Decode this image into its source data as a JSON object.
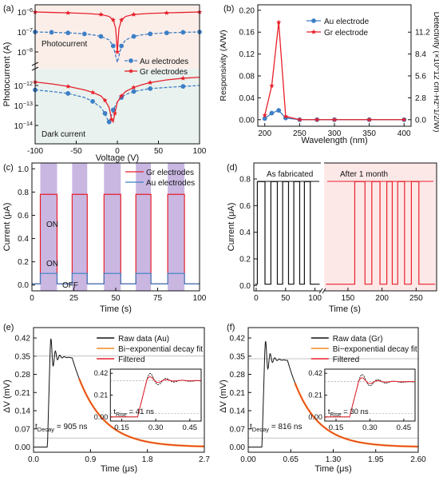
{
  "figure": {
    "colors": {
      "red": "#e8202a",
      "blue": "#3d7fc6",
      "black": "#111111",
      "orange": "#f08a24",
      "purple": "#b79fd8",
      "shade_top": "#fbeee9",
      "shade_bottom": "#e9f2ee",
      "pink": "#fde8e8"
    }
  },
  "chart_data": [
    {
      "panel": "(a)",
      "type": "line",
      "xlabel": "Voltage (V)",
      "ylabel": "Photocurrent (A)",
      "x_ticks": [
        "-100",
        "-50",
        "0",
        "50",
        "100"
      ],
      "y_ticks_top": [
        "10^-6",
        "10^-7",
        "10^-8"
      ],
      "y_ticks_bottom": [
        "10^-12",
        "10^-13",
        "10^-14"
      ],
      "xlim": [
        -100,
        100
      ],
      "annotations": [
        "Photocurrent",
        "Dark current"
      ],
      "legend": [
        "Au electrodes",
        "Gr electrodes"
      ],
      "series": [
        {
          "name": "Au electrodes",
          "group": "photo",
          "x": [
            -100,
            -90,
            -80,
            -70,
            -60,
            -50,
            -40,
            -30,
            -20,
            -10,
            -5,
            0,
            5,
            10,
            20,
            30,
            40,
            50,
            60,
            70,
            80,
            90,
            100
          ],
          "y": [
            1e-07,
            9.8e-08,
            9.6e-08,
            9.3e-08,
            9e-08,
            8.6e-08,
            8e-08,
            7.2e-08,
            6e-08,
            4e-08,
            2e-08,
            3e-09,
            2e-08,
            4e-08,
            6e-08,
            7.2e-08,
            8e-08,
            8.6e-08,
            9e-08,
            9.3e-08,
            9.6e-08,
            9.8e-08,
            1e-07
          ]
        },
        {
          "name": "Gr electrodes",
          "group": "photo",
          "x": [
            -100,
            -80,
            -60,
            -40,
            -20,
            -10,
            -5,
            -2,
            0,
            2,
            5,
            10,
            20,
            40,
            60,
            80,
            100
          ],
          "y": [
            1e-06,
            9.5e-07,
            9e-07,
            8.5e-07,
            7.5e-07,
            6e-07,
            4e-07,
            1.5e-07,
            1e-08,
            1.5e-07,
            4e-07,
            6e-07,
            7.5e-07,
            8.5e-07,
            9e-07,
            9.5e-07,
            1e-06
          ]
        },
        {
          "name": "Au electrodes",
          "group": "dark",
          "x": [
            -100,
            -80,
            -60,
            -40,
            -30,
            -20,
            -15,
            -12,
            -10,
            -8,
            -5,
            0,
            5,
            10,
            20,
            30,
            40,
            60,
            80,
            100
          ],
          "y": [
            6e-13,
            5e-13,
            4e-13,
            2.5e-13,
            1.6e-13,
            8e-14,
            4e-14,
            2e-14,
            1.5e-14,
            2.5e-14,
            6e-14,
            1.5e-13,
            2.5e-13,
            3.5e-13,
            5e-13,
            6e-13,
            7e-13,
            8e-13,
            9e-13,
            1e-12
          ]
        },
        {
          "name": "Gr electrodes",
          "group": "dark",
          "x": [
            -100,
            -80,
            -60,
            -40,
            -30,
            -20,
            -15,
            -10,
            -7,
            -5,
            -3,
            0,
            5,
            10,
            20,
            30,
            40,
            60,
            80,
            100
          ],
          "y": [
            1.5e-12,
            1.2e-12,
            9e-13,
            6e-13,
            4.5e-13,
            3e-13,
            1.8e-13,
            8e-14,
            2e-14,
            1.5e-14,
            4e-14,
            1.5e-13,
            3e-13,
            5e-13,
            8e-13,
            1.1e-12,
            1.4e-12,
            1.9e-12,
            2.3e-12,
            2.6e-12
          ]
        }
      ]
    },
    {
      "panel": "(b)",
      "type": "line",
      "xlabel": "Wavelength (nm)",
      "ylabel": "Responsivity (A/W)",
      "ylabel2": "Detectivity (×10^12 cm·Hz^1/2/W)",
      "x_ticks": [
        "200",
        "250",
        "300",
        "350",
        "400"
      ],
      "y_ticks": [
        "0.00",
        "0.04",
        "0.08",
        "0.12",
        "0.16",
        "0.20"
      ],
      "y2_ticks": [
        "0.0",
        "2.8",
        "5.6",
        "8.4",
        "11.2"
      ],
      "xlim": [
        190,
        410
      ],
      "ylim": [
        -0.012,
        0.21
      ],
      "series": [
        {
          "name": "Au electrode",
          "x": [
            200,
            210,
            220,
            230,
            250,
            275,
            300,
            350,
            400
          ],
          "y": [
            0.002,
            0.012,
            0.017,
            0.003,
            0.0,
            0.0,
            0.0,
            0.0,
            0.0
          ]
        },
        {
          "name": "Gr electrode",
          "x": [
            200,
            210,
            220,
            230,
            250,
            275,
            300,
            350,
            400
          ],
          "y": [
            0.008,
            0.062,
            0.178,
            0.006,
            0.0,
            0.0,
            0.0,
            0.0,
            0.0
          ]
        }
      ]
    },
    {
      "panel": "(c)",
      "type": "line",
      "xlabel": "Time (s)",
      "ylabel": "Current (μA)",
      "x_ticks": [
        "0",
        "25",
        "50",
        "75",
        "100"
      ],
      "y_ticks": [
        "0.0",
        "0.2",
        "0.4",
        "0.6",
        "0.8",
        "1.0"
      ],
      "xlim": [
        0,
        100
      ],
      "ylim": [
        -0.05,
        1.05
      ],
      "on_intervals": [
        [
          5,
          15
        ],
        [
          24,
          33
        ],
        [
          43,
          53
        ],
        [
          62,
          71
        ],
        [
          81,
          91
        ]
      ],
      "labels": {
        "on_upper": "ON",
        "on_lower": "ON",
        "off": "OFF"
      },
      "series": [
        {
          "name": "Gr electrodes",
          "on_value": 0.78,
          "off_value": 0.01
        },
        {
          "name": "Au electrodes",
          "on_value": 0.1,
          "off_value": 0.01
        }
      ]
    },
    {
      "panel": "(d)",
      "type": "line",
      "xlabel": "Time (s)",
      "ylabel": "Current (μA)",
      "x_ticks": [
        "0",
        "50",
        "100",
        "150",
        "200",
        "250"
      ],
      "y_ticks": [
        "0.0",
        "0.2",
        "0.4",
        "0.6",
        "0.8"
      ],
      "ylim": [
        -0.04,
        0.92
      ],
      "labels": {
        "fresh": "As fabricated",
        "aged": "After 1 month"
      },
      "series": [
        {
          "name": "As fabricated",
          "on_value": 0.78,
          "off_value": 0.01,
          "on_intervals": [
            [
              2,
              15
            ],
            [
              25,
              36
            ],
            [
              45,
              55
            ],
            [
              64,
              74
            ],
            [
              82,
              92
            ]
          ]
        },
        {
          "name": "After 1 month",
          "on_value": 0.78,
          "off_value": 0.01,
          "on_intervals": [
            [
              160,
              175
            ],
            [
              185,
              197
            ],
            [
              207,
              215
            ],
            [
              223,
              233
            ],
            [
              243,
              254
            ]
          ]
        }
      ]
    },
    {
      "panel": "(e)",
      "type": "line",
      "xlabel": "Time (μs)",
      "ylabel": "ΔV (mV)",
      "x_ticks": [
        "0.0",
        "0.9",
        "1.8",
        "2.7"
      ],
      "y_ticks": [
        "0.00",
        "0.07",
        "0.14",
        "0.21",
        "0.28",
        "0.35",
        "0.42"
      ],
      "xlim": [
        0,
        2.7
      ],
      "ylim": [
        -0.02,
        0.46
      ],
      "legend": [
        "Raw data (Au)",
        "Bi−exponential decay fit",
        "Filtered"
      ],
      "decay_label": "t_Decay = 905 ns",
      "rise_label": "t_Rise = 41 ns",
      "inset_x_ticks": [
        "0.15",
        "0.30",
        "0.45"
      ],
      "inset_y_ticks": [
        "0.42",
        "0.21",
        "0.00"
      ],
      "peak": 0.35,
      "rise_start": 0.22,
      "decay_tau": 0.42
    },
    {
      "panel": "(f)",
      "type": "line",
      "xlabel": "Time (μs)",
      "ylabel": "ΔV (mV)",
      "x_ticks": [
        "0.00",
        "0.65",
        "1.30",
        "1.95",
        "2.60"
      ],
      "y_ticks": [
        "0.00",
        "0.07",
        "0.14",
        "0.21",
        "0.28",
        "0.35",
        "0.42"
      ],
      "xlim": [
        0,
        2.6
      ],
      "ylim": [
        -0.02,
        0.46
      ],
      "legend": [
        "Raw data (Gr)",
        "Bi−exponential decay fit",
        "Filtered"
      ],
      "decay_label": "t_Decay = 816 ns",
      "rise_label": "t_Rise = 30 ns",
      "inset_x_ticks": [
        "0.15",
        "0.30",
        "0.45"
      ],
      "inset_y_ticks": [
        "0.42",
        "0.21",
        "0.00"
      ],
      "peak": 0.34,
      "rise_start": 0.21,
      "decay_tau": 0.38
    }
  ]
}
